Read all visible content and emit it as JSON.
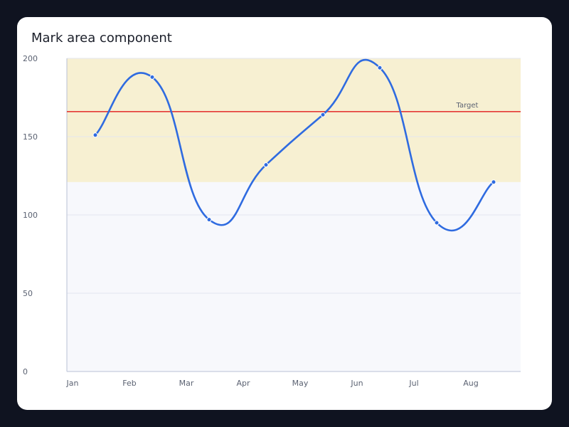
{
  "chart_data": {
    "type": "line",
    "title": "Mark area component",
    "categories": [
      "Jan",
      "Feb",
      "Mar",
      "Apr",
      "May",
      "Jun",
      "Jul",
      "Aug"
    ],
    "series": [
      {
        "values": [
          151,
          188,
          97,
          132,
          164,
          194,
          95,
          121
        ]
      }
    ],
    "ylim": [
      0,
      200
    ],
    "yticks": [
      0,
      50,
      100,
      150,
      200
    ],
    "grid": true,
    "smooth": true,
    "mark_line": {
      "label": "Target",
      "value": 166,
      "color": "#e53935"
    },
    "mark_area": {
      "from": 121,
      "to": 200,
      "color": "#f7f0d2"
    },
    "plot_background": "#f7f8fc",
    "line_color": "#2f6be0"
  }
}
